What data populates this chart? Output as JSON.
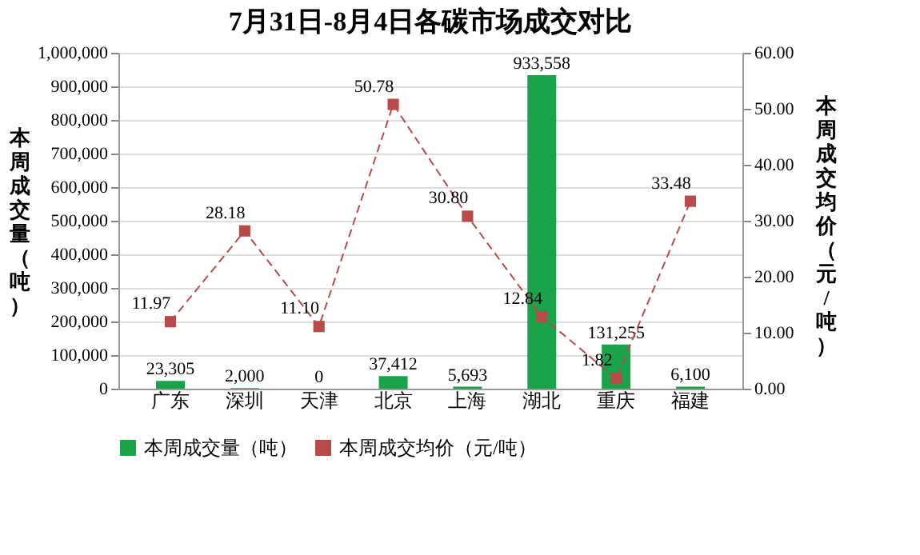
{
  "chart_data": {
    "type": "bar",
    "title": "7月31日-8月4日各碳市场成交对比",
    "ylabel": "本周成交量（吨）",
    "y2label": "本周成交均价（元/吨）",
    "categories": [
      "广东",
      "深圳",
      "天津",
      "北京",
      "上海",
      "湖北",
      "重庆",
      "福建"
    ],
    "series": [
      {
        "name": "本周成交量（吨）",
        "type": "bar",
        "color": "#1aa34a",
        "values": [
          23305,
          2000,
          0,
          37412,
          5693,
          933558,
          131255,
          6100
        ],
        "value_labels": [
          "23,305",
          "2,000",
          "0",
          "37,412",
          "5,693",
          "933,558",
          "131,255",
          "6,100"
        ]
      },
      {
        "name": "本周成交均价（元/吨）",
        "type": "line",
        "axis": "y2",
        "color": "#b84a4a",
        "marker": "square",
        "line_style": "dashed",
        "values": [
          11.97,
          28.18,
          11.1,
          50.78,
          30.8,
          12.84,
          1.82,
          33.48
        ],
        "value_labels": [
          "11.97",
          "28.18",
          "11.10",
          "50.78",
          "30.80",
          "12.84",
          "1.82",
          "33.48"
        ]
      }
    ],
    "ylim": [
      0,
      1000000
    ],
    "yticks": [
      {
        "value": 0,
        "label": "0"
      },
      {
        "value": 100000,
        "label": "100,000"
      },
      {
        "value": 200000,
        "label": "200,000"
      },
      {
        "value": 300000,
        "label": "300,000"
      },
      {
        "value": 400000,
        "label": "400,000"
      },
      {
        "value": 500000,
        "label": "500,000"
      },
      {
        "value": 600000,
        "label": "600,000"
      },
      {
        "value": 700000,
        "label": "700,000"
      },
      {
        "value": 800000,
        "label": "800,000"
      },
      {
        "value": 900000,
        "label": "900,000"
      },
      {
        "value": 1000000,
        "label": "1,000,000"
      }
    ],
    "y2lim": [
      0,
      60
    ],
    "y2ticks": [
      {
        "value": 0,
        "label": "0.00"
      },
      {
        "value": 10,
        "label": "10.00"
      },
      {
        "value": 20,
        "label": "20.00"
      },
      {
        "value": 30,
        "label": "30.00"
      },
      {
        "value": 40,
        "label": "40.00"
      },
      {
        "value": 50,
        "label": "50.00"
      },
      {
        "value": 60,
        "label": "60.00"
      }
    ],
    "grid": "y",
    "legend": "bottom"
  }
}
